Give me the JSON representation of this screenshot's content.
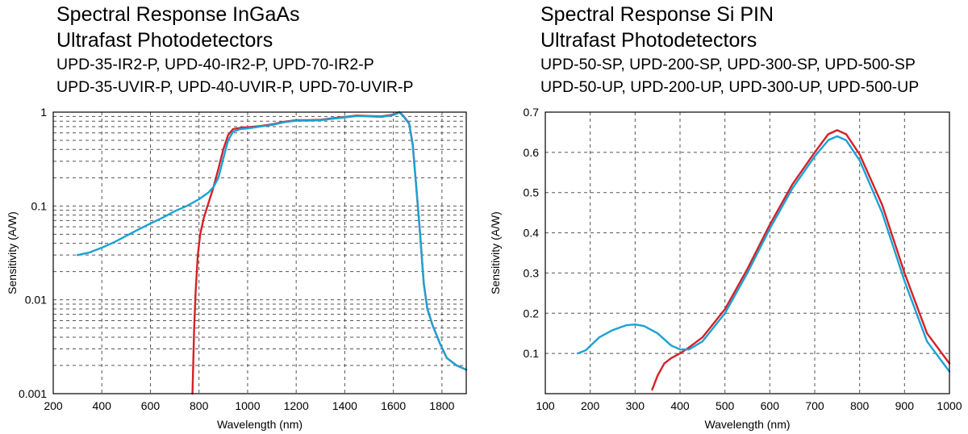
{
  "colors": {
    "ir_series": "#d42128",
    "uv_series": "#1aa3d4",
    "grid": "#555555"
  },
  "chart_data": [
    {
      "type": "line",
      "title": "Spectral Response InGaAs",
      "subtitle": "Ultrafast Photodetectors",
      "xlabel": "Wavelength (nm)",
      "ylabel": "Sensitivity (A/W)",
      "xscale": "linear",
      "yscale": "log",
      "xlim": [
        200,
        1900
      ],
      "ylim": [
        0.001,
        1
      ],
      "grid": true,
      "xticks": [
        200,
        400,
        600,
        800,
        1000,
        1200,
        1400,
        1600,
        1800
      ],
      "yticks": [
        0.001,
        0.01,
        0.1,
        1
      ],
      "ytick_labels": [
        "0.001",
        "0.01",
        "0.1",
        "1"
      ],
      "series": [
        {
          "name": "UPD-35-IR2-P, UPD-40-IR2-P, UPD-70-IR2-P",
          "color": "#d42128",
          "points": [
            [
              773,
              0.001
            ],
            [
              776,
              0.002
            ],
            [
              780,
              0.005
            ],
            [
              786,
              0.012
            ],
            [
              795,
              0.03
            ],
            [
              805,
              0.05
            ],
            [
              820,
              0.075
            ],
            [
              840,
              0.11
            ],
            [
              860,
              0.16
            ],
            [
              880,
              0.25
            ],
            [
              900,
              0.4
            ],
            [
              920,
              0.57
            ],
            [
              940,
              0.66
            ],
            [
              970,
              0.68
            ],
            [
              1000,
              0.69
            ],
            [
              1050,
              0.71
            ],
            [
              1100,
              0.74
            ],
            [
              1150,
              0.79
            ],
            [
              1200,
              0.82
            ],
            [
              1250,
              0.82
            ],
            [
              1300,
              0.83
            ],
            [
              1350,
              0.86
            ],
            [
              1400,
              0.89
            ],
            [
              1450,
              0.92
            ],
            [
              1500,
              0.91
            ],
            [
              1550,
              0.9
            ],
            [
              1600,
              0.94
            ],
            [
              1625,
              1.0
            ],
            [
              1640,
              0.92
            ],
            [
              1665,
              0.76
            ],
            [
              1680,
              0.45
            ],
            [
              1695,
              0.15
            ],
            [
              1710,
              0.05
            ],
            [
              1725,
              0.015
            ],
            [
              1740,
              0.008
            ],
            [
              1760,
              0.0055
            ],
            [
              1790,
              0.0035
            ],
            [
              1820,
              0.0024
            ],
            [
              1860,
              0.002
            ],
            [
              1900,
              0.0018
            ]
          ]
        },
        {
          "name": "UPD-35-UVIR-P, UPD-40-UVIR-P, UPD-70-UVIR-P",
          "color": "#1aa3d4",
          "points": [
            [
              300,
              0.03
            ],
            [
              350,
              0.032
            ],
            [
              400,
              0.036
            ],
            [
              450,
              0.041
            ],
            [
              500,
              0.048
            ],
            [
              550,
              0.056
            ],
            [
              600,
              0.065
            ],
            [
              650,
              0.075
            ],
            [
              700,
              0.088
            ],
            [
              750,
              0.1
            ],
            [
              800,
              0.118
            ],
            [
              840,
              0.14
            ],
            [
              860,
              0.16
            ],
            [
              880,
              0.2
            ],
            [
              900,
              0.32
            ],
            [
              920,
              0.5
            ],
            [
              940,
              0.62
            ],
            [
              970,
              0.66
            ],
            [
              1000,
              0.67
            ],
            [
              1050,
              0.7
            ],
            [
              1100,
              0.73
            ],
            [
              1150,
              0.78
            ],
            [
              1200,
              0.81
            ],
            [
              1250,
              0.81
            ],
            [
              1300,
              0.82
            ],
            [
              1350,
              0.85
            ],
            [
              1400,
              0.88
            ],
            [
              1450,
              0.91
            ],
            [
              1500,
              0.9
            ],
            [
              1550,
              0.89
            ],
            [
              1600,
              0.93
            ],
            [
              1625,
              0.99
            ],
            [
              1640,
              0.91
            ],
            [
              1665,
              0.75
            ],
            [
              1680,
              0.44
            ],
            [
              1695,
              0.15
            ],
            [
              1710,
              0.05
            ],
            [
              1725,
              0.015
            ],
            [
              1740,
              0.008
            ],
            [
              1760,
              0.0055
            ],
            [
              1790,
              0.0035
            ],
            [
              1820,
              0.0024
            ],
            [
              1860,
              0.002
            ],
            [
              1900,
              0.0018
            ]
          ]
        }
      ]
    },
    {
      "type": "line",
      "title": "Spectral Response Si PIN",
      "subtitle": "Ultrafast Photodetectors",
      "xlabel": "Wavelength (nm)",
      "ylabel": "Sensitivity (A/W)",
      "xscale": "linear",
      "yscale": "linear",
      "xlim": [
        100,
        1000
      ],
      "ylim": [
        0,
        0.7
      ],
      "grid": true,
      "xticks": [
        100,
        200,
        300,
        400,
        500,
        600,
        700,
        800,
        900,
        1000
      ],
      "yticks": [
        0.1,
        0.2,
        0.3,
        0.4,
        0.5,
        0.6,
        0.7
      ],
      "ytick_labels": [
        "0.1",
        "0.2",
        "0.3",
        "0.4",
        "0.5",
        "0.6",
        "0.7"
      ],
      "series": [
        {
          "name": "UPD-50-SP, UPD-200-SP, UPD-300-SP, UPD-500-SP",
          "color": "#d42128",
          "points": [
            [
              338,
              0.01
            ],
            [
              350,
              0.045
            ],
            [
              365,
              0.075
            ],
            [
              380,
              0.088
            ],
            [
              400,
              0.1
            ],
            [
              420,
              0.115
            ],
            [
              450,
              0.14
            ],
            [
              500,
              0.21
            ],
            [
              550,
              0.31
            ],
            [
              600,
              0.42
            ],
            [
              650,
              0.52
            ],
            [
              700,
              0.6
            ],
            [
              730,
              0.645
            ],
            [
              750,
              0.655
            ],
            [
              770,
              0.645
            ],
            [
              800,
              0.595
            ],
            [
              850,
              0.47
            ],
            [
              900,
              0.3
            ],
            [
              950,
              0.15
            ],
            [
              1000,
              0.075
            ]
          ]
        },
        {
          "name": "UPD-50-UP, UPD-200-UP, UPD-300-UP, UPD-500-UP",
          "color": "#1aa3d4",
          "points": [
            [
              172,
              0.1
            ],
            [
              190,
              0.108
            ],
            [
              220,
              0.14
            ],
            [
              250,
              0.158
            ],
            [
              280,
              0.17
            ],
            [
              300,
              0.172
            ],
            [
              320,
              0.168
            ],
            [
              350,
              0.15
            ],
            [
              380,
              0.12
            ],
            [
              400,
              0.11
            ],
            [
              420,
              0.11
            ],
            [
              450,
              0.13
            ],
            [
              500,
              0.2
            ],
            [
              550,
              0.3
            ],
            [
              600,
              0.41
            ],
            [
              650,
              0.51
            ],
            [
              700,
              0.59
            ],
            [
              730,
              0.63
            ],
            [
              750,
              0.64
            ],
            [
              770,
              0.63
            ],
            [
              800,
              0.58
            ],
            [
              850,
              0.45
            ],
            [
              900,
              0.28
            ],
            [
              950,
              0.13
            ],
            [
              1000,
              0.055
            ]
          ]
        }
      ]
    }
  ]
}
